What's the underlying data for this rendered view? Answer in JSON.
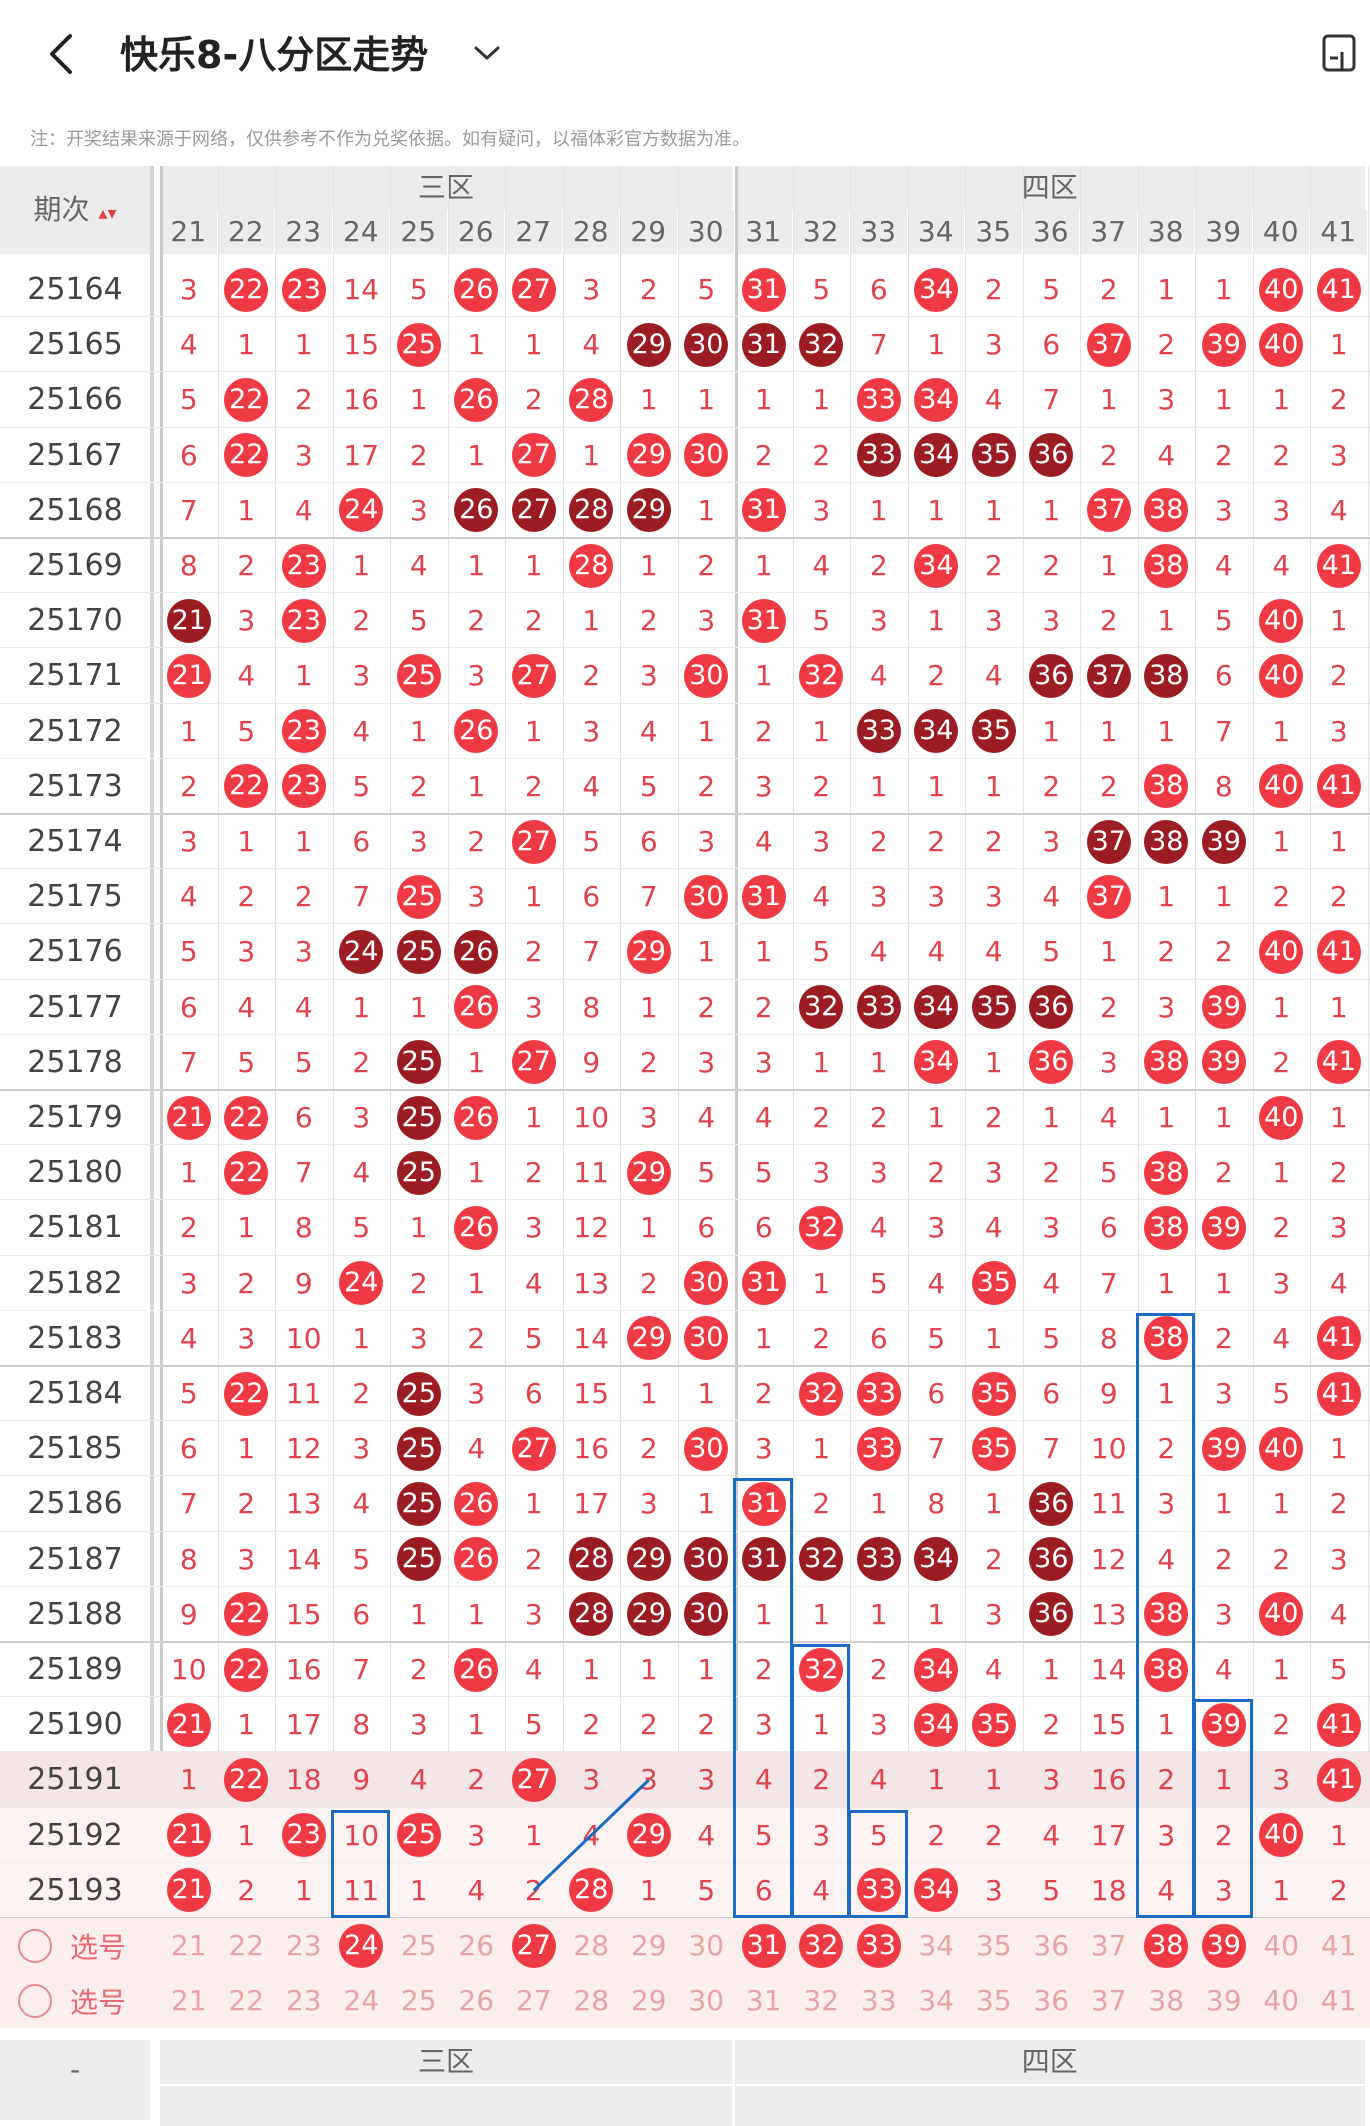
{
  "header": {
    "title": "快乐8-八分区走势"
  },
  "note": "注：开奖结果来源于网络，仅供参考不作为兑奖依据。如有疑问，以福体彩官方数据为准。",
  "table": {
    "issue_header": "期次",
    "zones": [
      {
        "name": "三区",
        "start": 21,
        "end": 30
      },
      {
        "name": "四区",
        "start": 31,
        "end": 41
      }
    ],
    "columns": [
      "21",
      "22",
      "23",
      "24",
      "25",
      "26",
      "27",
      "28",
      "29",
      "30",
      "31",
      "32",
      "33",
      "34",
      "35",
      "36",
      "37",
      "38",
      "39",
      "40",
      "41"
    ],
    "rows": [
      {
        "issue": "25164",
        "cells": [
          "3",
          "22",
          "23",
          "14",
          "5",
          "26",
          "27",
          "3",
          "2",
          "5",
          "31",
          "5",
          "6",
          "34",
          "2",
          "5",
          "2",
          "1",
          "1",
          "40",
          "41"
        ],
        "hits": [
          22,
          23,
          26,
          27,
          31,
          34,
          40,
          41
        ],
        "dark": []
      },
      {
        "issue": "25165",
        "cells": [
          "4",
          "1",
          "1",
          "15",
          "25",
          "1",
          "1",
          "4",
          "29",
          "30",
          "31",
          "32",
          "7",
          "1",
          "3",
          "6",
          "37",
          "2",
          "39",
          "40",
          "1"
        ],
        "hits": [
          25,
          29,
          30,
          31,
          32,
          37,
          39,
          40
        ],
        "dark": [
          29,
          30,
          31,
          32
        ]
      },
      {
        "issue": "25166",
        "cells": [
          "5",
          "22",
          "2",
          "16",
          "1",
          "26",
          "2",
          "28",
          "1",
          "1",
          "1",
          "1",
          "33",
          "34",
          "4",
          "7",
          "1",
          "3",
          "1",
          "1",
          "2"
        ],
        "hits": [
          22,
          26,
          28,
          33,
          34
        ],
        "dark": []
      },
      {
        "issue": "25167",
        "cells": [
          "6",
          "22",
          "3",
          "17",
          "2",
          "1",
          "27",
          "1",
          "29",
          "30",
          "2",
          "2",
          "33",
          "34",
          "35",
          "36",
          "2",
          "4",
          "2",
          "2",
          "3"
        ],
        "hits": [
          22,
          27,
          29,
          30,
          33,
          34,
          35,
          36
        ],
        "dark": [
          33,
          34,
          35,
          36
        ]
      },
      {
        "issue": "25168",
        "cells": [
          "7",
          "1",
          "4",
          "24",
          "3",
          "26",
          "27",
          "28",
          "29",
          "1",
          "31",
          "3",
          "1",
          "1",
          "1",
          "1",
          "37",
          "38",
          "3",
          "3",
          "4"
        ],
        "hits": [
          24,
          26,
          27,
          28,
          29,
          31,
          37,
          38
        ],
        "dark": [
          26,
          27,
          28,
          29
        ]
      },
      {
        "issue": "25169",
        "cells": [
          "8",
          "2",
          "23",
          "1",
          "4",
          "1",
          "1",
          "28",
          "1",
          "2",
          "1",
          "4",
          "2",
          "34",
          "2",
          "2",
          "1",
          "38",
          "4",
          "4",
          "41"
        ],
        "hits": [
          23,
          28,
          34,
          38,
          41
        ],
        "dark": []
      },
      {
        "issue": "25170",
        "cells": [
          "21",
          "3",
          "23",
          "2",
          "5",
          "2",
          "2",
          "1",
          "2",
          "3",
          "31",
          "5",
          "3",
          "1",
          "3",
          "3",
          "2",
          "1",
          "5",
          "40",
          "1"
        ],
        "hits": [
          21,
          23,
          31,
          40
        ],
        "dark": [
          21
        ]
      },
      {
        "issue": "25171",
        "cells": [
          "21",
          "4",
          "1",
          "3",
          "25",
          "3",
          "27",
          "2",
          "3",
          "30",
          "1",
          "32",
          "4",
          "2",
          "4",
          "36",
          "37",
          "38",
          "6",
          "40",
          "2"
        ],
        "hits": [
          21,
          25,
          27,
          30,
          32,
          36,
          37,
          38,
          40
        ],
        "dark": [
          36,
          37,
          38
        ]
      },
      {
        "issue": "25172",
        "cells": [
          "1",
          "5",
          "23",
          "4",
          "1",
          "26",
          "1",
          "3",
          "4",
          "1",
          "2",
          "1",
          "33",
          "34",
          "35",
          "1",
          "1",
          "1",
          "7",
          "1",
          "3"
        ],
        "hits": [
          23,
          26,
          33,
          34,
          35
        ],
        "dark": [
          33,
          34,
          35
        ]
      },
      {
        "issue": "25173",
        "cells": [
          "2",
          "22",
          "23",
          "5",
          "2",
          "1",
          "2",
          "4",
          "5",
          "2",
          "3",
          "2",
          "1",
          "1",
          "1",
          "2",
          "2",
          "38",
          "8",
          "40",
          "41"
        ],
        "hits": [
          22,
          23,
          38,
          40,
          41
        ],
        "dark": []
      },
      {
        "issue": "25174",
        "cells": [
          "3",
          "1",
          "1",
          "6",
          "3",
          "2",
          "27",
          "5",
          "6",
          "3",
          "4",
          "3",
          "2",
          "2",
          "2",
          "3",
          "37",
          "38",
          "39",
          "1",
          "1"
        ],
        "hits": [
          27,
          37,
          38,
          39
        ],
        "dark": [
          37,
          38,
          39
        ]
      },
      {
        "issue": "25175",
        "cells": [
          "4",
          "2",
          "2",
          "7",
          "25",
          "3",
          "1",
          "6",
          "7",
          "30",
          "31",
          "4",
          "3",
          "3",
          "3",
          "4",
          "37",
          "1",
          "1",
          "2",
          "2"
        ],
        "hits": [
          25,
          30,
          31,
          37
        ],
        "dark": []
      },
      {
        "issue": "25176",
        "cells": [
          "5",
          "3",
          "3",
          "24",
          "25",
          "26",
          "2",
          "7",
          "29",
          "1",
          "1",
          "5",
          "4",
          "4",
          "4",
          "5",
          "1",
          "2",
          "2",
          "40",
          "41"
        ],
        "hits": [
          24,
          25,
          26,
          29,
          40,
          41
        ],
        "dark": [
          24,
          25,
          26
        ]
      },
      {
        "issue": "25177",
        "cells": [
          "6",
          "4",
          "4",
          "1",
          "1",
          "26",
          "3",
          "8",
          "1",
          "2",
          "2",
          "32",
          "33",
          "34",
          "35",
          "36",
          "2",
          "3",
          "39",
          "1",
          "1"
        ],
        "hits": [
          26,
          32,
          33,
          34,
          35,
          36,
          39
        ],
        "dark": [
          32,
          33,
          34,
          35,
          36
        ]
      },
      {
        "issue": "25178",
        "cells": [
          "7",
          "5",
          "5",
          "2",
          "25",
          "1",
          "27",
          "9",
          "2",
          "3",
          "3",
          "1",
          "1",
          "34",
          "1",
          "36",
          "3",
          "38",
          "39",
          "2",
          "41"
        ],
        "hits": [
          25,
          27,
          34,
          36,
          38,
          39,
          41
        ],
        "dark": [
          25
        ]
      },
      {
        "issue": "25179",
        "cells": [
          "21",
          "22",
          "6",
          "3",
          "25",
          "26",
          "1",
          "10",
          "3",
          "4",
          "4",
          "2",
          "2",
          "1",
          "2",
          "1",
          "4",
          "1",
          "1",
          "40",
          "1"
        ],
        "hits": [
          21,
          22,
          25,
          26,
          40
        ],
        "dark": [
          25
        ]
      },
      {
        "issue": "25180",
        "cells": [
          "1",
          "22",
          "7",
          "4",
          "25",
          "1",
          "2",
          "11",
          "29",
          "5",
          "5",
          "3",
          "3",
          "2",
          "3",
          "2",
          "5",
          "38",
          "2",
          "1",
          "2"
        ],
        "hits": [
          22,
          25,
          29,
          38
        ],
        "dark": [
          25
        ]
      },
      {
        "issue": "25181",
        "cells": [
          "2",
          "1",
          "8",
          "5",
          "1",
          "26",
          "3",
          "12",
          "1",
          "6",
          "6",
          "32",
          "4",
          "3",
          "4",
          "3",
          "6",
          "38",
          "39",
          "2",
          "3"
        ],
        "hits": [
          26,
          32,
          38,
          39
        ],
        "dark": []
      },
      {
        "issue": "25182",
        "cells": [
          "3",
          "2",
          "9",
          "24",
          "2",
          "1",
          "4",
          "13",
          "2",
          "30",
          "31",
          "1",
          "5",
          "4",
          "35",
          "4",
          "7",
          "1",
          "1",
          "3",
          "4"
        ],
        "hits": [
          24,
          30,
          31,
          35
        ],
        "dark": []
      },
      {
        "issue": "25183",
        "cells": [
          "4",
          "3",
          "10",
          "1",
          "3",
          "2",
          "5",
          "14",
          "29",
          "30",
          "1",
          "2",
          "6",
          "5",
          "1",
          "5",
          "8",
          "38",
          "2",
          "4",
          "41"
        ],
        "hits": [
          29,
          30,
          38,
          41
        ],
        "dark": []
      },
      {
        "issue": "25184",
        "cells": [
          "5",
          "22",
          "11",
          "2",
          "25",
          "3",
          "6",
          "15",
          "1",
          "1",
          "2",
          "32",
          "33",
          "6",
          "35",
          "6",
          "9",
          "1",
          "3",
          "5",
          "41"
        ],
        "hits": [
          22,
          25,
          32,
          33,
          35,
          41
        ],
        "dark": [
          25
        ]
      },
      {
        "issue": "25185",
        "cells": [
          "6",
          "1",
          "12",
          "3",
          "25",
          "4",
          "27",
          "16",
          "2",
          "30",
          "3",
          "1",
          "33",
          "7",
          "35",
          "7",
          "10",
          "2",
          "39",
          "40",
          "1"
        ],
        "hits": [
          25,
          27,
          30,
          33,
          35,
          39,
          40
        ],
        "dark": [
          25
        ]
      },
      {
        "issue": "25186",
        "cells": [
          "7",
          "2",
          "13",
          "4",
          "25",
          "26",
          "1",
          "17",
          "3",
          "1",
          "31",
          "2",
          "1",
          "8",
          "1",
          "36",
          "11",
          "3",
          "1",
          "1",
          "2"
        ],
        "hits": [
          25,
          26,
          31,
          36
        ],
        "dark": [
          25,
          36
        ]
      },
      {
        "issue": "25187",
        "cells": [
          "8",
          "3",
          "14",
          "5",
          "25",
          "26",
          "2",
          "28",
          "29",
          "30",
          "31",
          "32",
          "33",
          "34",
          "2",
          "36",
          "12",
          "4",
          "2",
          "2",
          "3"
        ],
        "hits": [
          25,
          26,
          28,
          29,
          30,
          31,
          32,
          33,
          34,
          36
        ],
        "dark": [
          25,
          28,
          29,
          30,
          31,
          32,
          33,
          34,
          36
        ]
      },
      {
        "issue": "25188",
        "cells": [
          "9",
          "22",
          "15",
          "6",
          "1",
          "1",
          "3",
          "28",
          "29",
          "30",
          "1",
          "1",
          "1",
          "1",
          "3",
          "36",
          "13",
          "38",
          "3",
          "40",
          "4"
        ],
        "hits": [
          22,
          28,
          29,
          30,
          36,
          38,
          40
        ],
        "dark": [
          28,
          29,
          30,
          36
        ]
      },
      {
        "issue": "25189",
        "cells": [
          "10",
          "22",
          "16",
          "7",
          "2",
          "26",
          "4",
          "1",
          "1",
          "1",
          "2",
          "32",
          "2",
          "34",
          "4",
          "1",
          "14",
          "38",
          "4",
          "1",
          "5"
        ],
        "hits": [
          22,
          26,
          32,
          34,
          38
        ],
        "dark": []
      },
      {
        "issue": "25190",
        "cells": [
          "21",
          "1",
          "17",
          "8",
          "3",
          "1",
          "5",
          "2",
          "2",
          "2",
          "3",
          "1",
          "3",
          "34",
          "35",
          "2",
          "15",
          "1",
          "39",
          "2",
          "41"
        ],
        "hits": [
          21,
          34,
          35,
          39,
          41
        ],
        "dark": []
      },
      {
        "issue": "25191",
        "cells": [
          "1",
          "22",
          "18",
          "9",
          "4",
          "2",
          "27",
          "3",
          "3",
          "3",
          "4",
          "2",
          "4",
          "1",
          "1",
          "3",
          "16",
          "2",
          "1",
          "3",
          "41"
        ],
        "hits": [
          22,
          27,
          41
        ],
        "dark": []
      },
      {
        "issue": "25192",
        "cells": [
          "21",
          "1",
          "23",
          "10",
          "25",
          "3",
          "1",
          "4",
          "29",
          "4",
          "5",
          "3",
          "5",
          "2",
          "2",
          "4",
          "17",
          "3",
          "2",
          "40",
          "1"
        ],
        "hits": [
          21,
          23,
          25,
          29,
          40
        ],
        "dark": []
      },
      {
        "issue": "25193",
        "cells": [
          "21",
          "2",
          "1",
          "11",
          "1",
          "4",
          "2",
          "28",
          "1",
          "5",
          "6",
          "4",
          "33",
          "34",
          "3",
          "5",
          "18",
          "4",
          "3",
          "1",
          "2"
        ],
        "hits": [
          21,
          28,
          33,
          34
        ],
        "dark": []
      }
    ],
    "picks": [
      {
        "label": "选号",
        "hits": [
          24,
          27,
          31,
          32,
          33,
          38,
          39
        ]
      },
      {
        "label": "选号",
        "hits": []
      }
    ],
    "footer_zones": [
      "三区",
      "四区"
    ],
    "footer_issue": "-"
  },
  "colors": {
    "hit": "#ef3a44",
    "hit_dark": "#9b1c22",
    "miss_text": "#e0434b",
    "selection": "#1a6bc4",
    "pick_row_bg": "#fdeeee"
  }
}
